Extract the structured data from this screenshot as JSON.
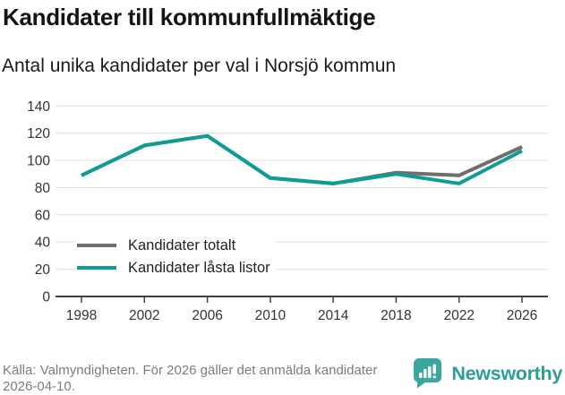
{
  "header": {
    "title": "Kandidater till kommunfullmäktige",
    "subtitle": "Antal unika kandidater per val i Norsjö kommun"
  },
  "chart_data": {
    "type": "line",
    "title": "Kandidater till kommunfullmäktige",
    "subtitle": "Antal unika kandidater per val i Norsjö kommun",
    "x": [
      1998,
      2002,
      2006,
      2010,
      2014,
      2018,
      2022,
      2026
    ],
    "series": [
      {
        "name": "Kandidater totalt",
        "color": "#6e6e6e",
        "values": [
          89,
          111,
          118,
          87,
          83,
          91,
          89,
          110
        ]
      },
      {
        "name": "Kandidater låsta listor",
        "color": "#0d9d94",
        "values": [
          89,
          111,
          118,
          87,
          83,
          90,
          83,
          107
        ]
      }
    ],
    "xlabel": "",
    "ylabel": "",
    "ylim": [
      0,
      140
    ],
    "yticks": [
      0,
      20,
      40,
      60,
      80,
      100,
      120,
      140
    ],
    "grid": true,
    "legend_position": "inside bottom-left"
  },
  "footer": {
    "source_text": "Källa: Valmyndigheten. För 2026 gäller det anmälda kandidater 2026-04-10."
  },
  "logo": {
    "text": "Newsworthy",
    "icon": "newsworthy-bar-chart-bubble-icon",
    "icon_color": "#3aa79e",
    "text_color": "#2d9e96"
  },
  "colors": {
    "gridline": "#dddddd",
    "axis": "#404040",
    "tick_label": "#333333"
  }
}
